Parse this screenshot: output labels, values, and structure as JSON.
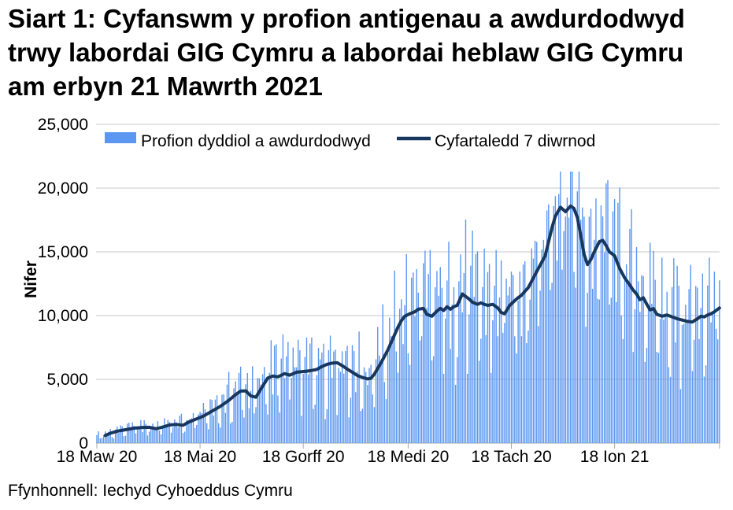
{
  "title": "Siart 1: Cyfanswm y profion antigenau a awdurdodwyd trwy labordai GIG Cymru a labordai heblaw GIG Cymru am erbyn 21 Mawrth 2021",
  "source": "Ffynhonnell: Iechyd Cyhoeddus Cymru",
  "legend": {
    "bars": "Profion dyddiol a awdurdodwyd",
    "line": "Cyfartaledd 7 diwrnod"
  },
  "colors": {
    "bar": "#5B97F0",
    "line": "#17375E",
    "grid": "#C8C8C8",
    "axis": "#ABABAB",
    "text": "#000000"
  },
  "chart_data": {
    "type": "bar+line",
    "title": "Siart 1: Cyfanswm y profion antigenau a awdurdodwyd trwy labordai GIG Cymru a labordai heblaw GIG Cymru am erbyn 21 Mawrth 2021",
    "xlabel": "",
    "ylabel": "Nifer",
    "ylim": [
      0,
      25000
    ],
    "grid": "horizontal",
    "legend_position": "top-inside",
    "y_ticks": [
      "0",
      "5,000",
      "10,000",
      "15,000",
      "20,000",
      "25,000"
    ],
    "y_tick_values": [
      0,
      5000,
      10000,
      15000,
      20000,
      25000
    ],
    "x_ticks": [
      {
        "day": 0,
        "label": "18 Maw 20"
      },
      {
        "day": 61,
        "label": "18 Mai 20"
      },
      {
        "day": 122,
        "label": "18 Gorff 20"
      },
      {
        "day": 184,
        "label": "18 Medi 20"
      },
      {
        "day": 245,
        "label": "18 Tach 20"
      },
      {
        "day": 306,
        "label": "18 Ion 21"
      }
    ],
    "days_total": 368,
    "series": [
      {
        "name": "Cyfartaledd 7 diwrnod",
        "type": "line",
        "points_day_value": [
          [
            5,
            600
          ],
          [
            8,
            780
          ],
          [
            12,
            930
          ],
          [
            17,
            1050
          ],
          [
            22,
            1170
          ],
          [
            27,
            1230
          ],
          [
            31,
            1240
          ],
          [
            35,
            1130
          ],
          [
            38,
            1220
          ],
          [
            43,
            1420
          ],
          [
            47,
            1460
          ],
          [
            51,
            1400
          ],
          [
            54,
            1630
          ],
          [
            59,
            1900
          ],
          [
            63,
            2120
          ],
          [
            68,
            2500
          ],
          [
            73,
            2880
          ],
          [
            78,
            3350
          ],
          [
            82,
            3800
          ],
          [
            85,
            4080
          ],
          [
            88,
            4100
          ],
          [
            91,
            3700
          ],
          [
            94,
            3600
          ],
          [
            97,
            4250
          ],
          [
            101,
            5100
          ],
          [
            104,
            5260
          ],
          [
            107,
            5200
          ],
          [
            111,
            5450
          ],
          [
            114,
            5330
          ],
          [
            118,
            5560
          ],
          [
            121,
            5600
          ],
          [
            124,
            5640
          ],
          [
            127,
            5700
          ],
          [
            130,
            5780
          ],
          [
            133,
            6000
          ],
          [
            136,
            6180
          ],
          [
            139,
            6270
          ],
          [
            142,
            6300
          ],
          [
            145,
            6080
          ],
          [
            148,
            5800
          ],
          [
            151,
            5560
          ],
          [
            154,
            5300
          ],
          [
            157,
            5150
          ],
          [
            160,
            5040
          ],
          [
            162,
            5080
          ],
          [
            164,
            5400
          ],
          [
            166,
            5850
          ],
          [
            168,
            6300
          ],
          [
            170,
            6800
          ],
          [
            172,
            7300
          ],
          [
            174,
            7900
          ],
          [
            176,
            8500
          ],
          [
            178,
            9100
          ],
          [
            180,
            9600
          ],
          [
            182,
            9950
          ],
          [
            185,
            10150
          ],
          [
            188,
            10300
          ],
          [
            190,
            10500
          ],
          [
            193,
            10560
          ],
          [
            195,
            10100
          ],
          [
            198,
            9950
          ],
          [
            201,
            10350
          ],
          [
            203,
            10570
          ],
          [
            205,
            10400
          ],
          [
            207,
            10700
          ],
          [
            209,
            10500
          ],
          [
            211,
            10700
          ],
          [
            213,
            10800
          ],
          [
            216,
            11700
          ],
          [
            218,
            11500
          ],
          [
            220,
            11300
          ],
          [
            222,
            11050
          ],
          [
            225,
            10880
          ],
          [
            227,
            11000
          ],
          [
            229,
            10880
          ],
          [
            231,
            10800
          ],
          [
            234,
            10880
          ],
          [
            237,
            10600
          ],
          [
            239,
            10250
          ],
          [
            241,
            10150
          ],
          [
            244,
            10800
          ],
          [
            246,
            11050
          ],
          [
            248,
            11300
          ],
          [
            251,
            11600
          ],
          [
            253,
            11900
          ],
          [
            255,
            12200
          ],
          [
            258,
            12950
          ],
          [
            260,
            13450
          ],
          [
            262,
            13950
          ],
          [
            265,
            14700
          ],
          [
            267,
            15800
          ],
          [
            269,
            16900
          ],
          [
            271,
            17800
          ],
          [
            274,
            18500
          ],
          [
            277,
            18150
          ],
          [
            280,
            18600
          ],
          [
            282,
            18400
          ],
          [
            284,
            17700
          ],
          [
            286,
            16300
          ],
          [
            288,
            14800
          ],
          [
            290,
            14000
          ],
          [
            292,
            14400
          ],
          [
            294,
            15000
          ],
          [
            297,
            15800
          ],
          [
            299,
            15900
          ],
          [
            301,
            15500
          ],
          [
            303,
            15000
          ],
          [
            306,
            14700
          ],
          [
            309,
            13700
          ],
          [
            312,
            12950
          ],
          [
            315,
            12400
          ],
          [
            317,
            12000
          ],
          [
            319,
            11700
          ],
          [
            321,
            11250
          ],
          [
            323,
            11400
          ],
          [
            325,
            10900
          ],
          [
            327,
            10450
          ],
          [
            329,
            10550
          ],
          [
            331,
            10100
          ],
          [
            334,
            9950
          ],
          [
            337,
            10050
          ],
          [
            340,
            9900
          ],
          [
            343,
            9750
          ],
          [
            346,
            9650
          ],
          [
            349,
            9550
          ],
          [
            352,
            9500
          ],
          [
            355,
            9750
          ],
          [
            357,
            9950
          ],
          [
            359,
            9900
          ],
          [
            361,
            10050
          ],
          [
            363,
            10150
          ],
          [
            365,
            10300
          ],
          [
            368,
            10600
          ]
        ]
      },
      {
        "name": "Profion dyddiol a awdurdodwyd",
        "type": "bar",
        "note": "daily bars fluctuate around the 7-day average; generated from bars_model",
        "max_value": 21300
      }
    ],
    "bars_model": {
      "weekday_pattern": [
        0.55,
        0.95,
        -1.0,
        -0.72,
        0.35,
        0.8,
        -0.25
      ],
      "pattern_amp": 0.85,
      "noise_amp": 0.55,
      "dev_base": 3300,
      "dev_slope": 0.12,
      "dev_cap_ratio": 0.5,
      "min_ratio": 0.22,
      "min_abs": 150,
      "max_bar": 21300
    }
  }
}
